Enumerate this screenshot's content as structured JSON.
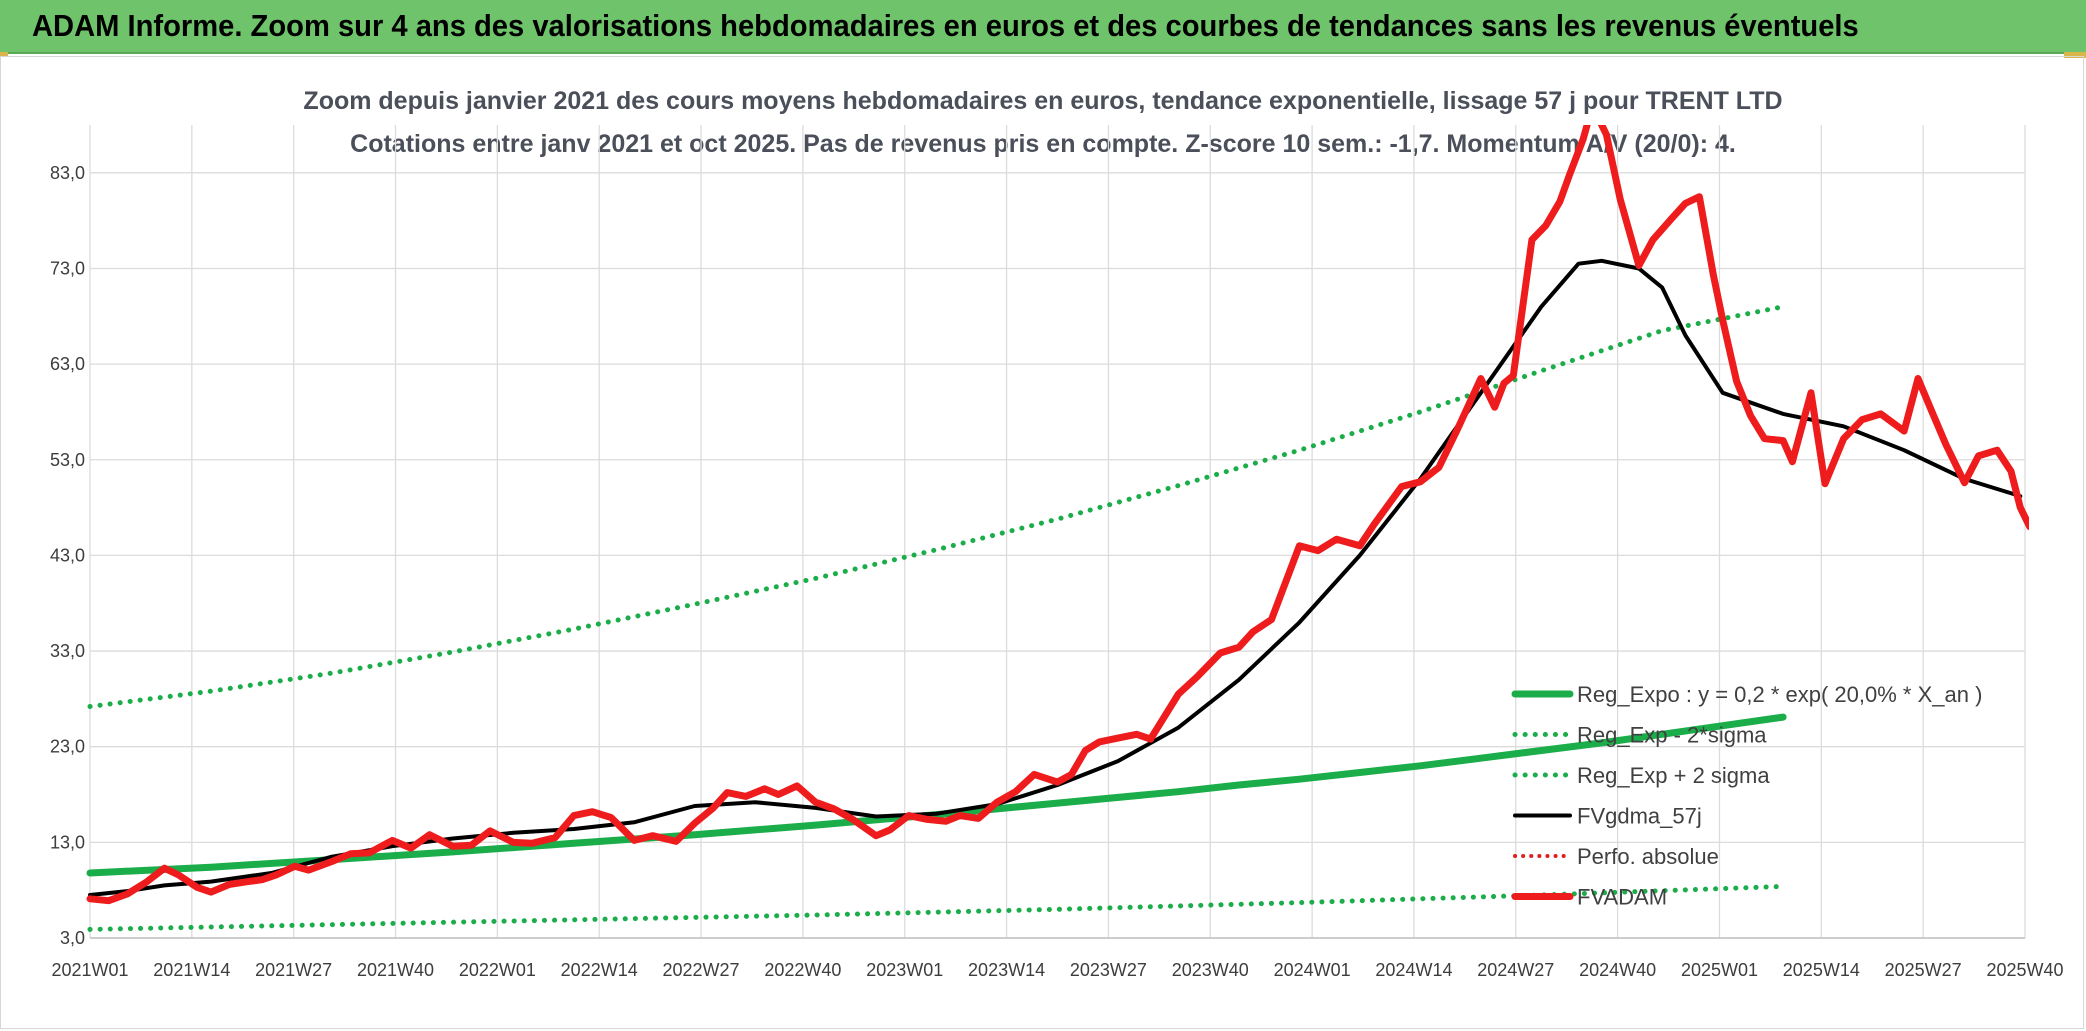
{
  "banner": {
    "title": "ADAM Informe. Zoom sur 4 ans des valorisations hebdomadaires en euros et des courbes de tendances sans les revenus éventuels"
  },
  "chart_data": {
    "type": "line",
    "title_line1": "Zoom depuis janvier 2021 des cours moyens hebdomadaires en euros, tendance exponentielle, lissage 57 j pour TRENT LTD",
    "title_line2": "Cotations entre janv 2021 et oct 2025. Pas de revenus pris en compte. Z-score 10 sem.: -1,7. Momentum A/V (20/0): 4.",
    "ylim": [
      3,
      88
    ],
    "y_ticks": [
      "3,0",
      "13,0",
      "23,0",
      "33,0",
      "43,0",
      "53,0",
      "63,0",
      "73,0",
      "83,0"
    ],
    "y_tick_values": [
      3,
      13,
      23,
      33,
      43,
      53,
      63,
      73,
      83
    ],
    "x_ticks": [
      "2021W01",
      "2021W14",
      "2021W27",
      "2021W40",
      "2022W01",
      "2022W14",
      "2022W27",
      "2022W40",
      "2023W01",
      "2023W14",
      "2023W27",
      "2023W40",
      "2024W01",
      "2024W14",
      "2024W27",
      "2024W40",
      "2025W01",
      "2025W14",
      "2025W27",
      "2025W40"
    ],
    "grid": true,
    "legend_position": "bottom-right",
    "colors": {
      "reg_expo": "#1aad4a",
      "sigma": "#1aad4a",
      "fvgdma": "#000000",
      "perfo": "#e02020",
      "fvadam": "#ee1c1c"
    },
    "series": [
      {
        "name": "Reg_Expo : y = 0,2 * exp( 20,0% *  X_an )",
        "style": "solid-thick-green",
        "points": [
          [
            0,
            9.8
          ],
          [
            26,
            10.4
          ],
          [
            52,
            11.2
          ],
          [
            78,
            12.0
          ],
          [
            104,
            12.9
          ],
          [
            130,
            13.8
          ],
          [
            156,
            14.8
          ],
          [
            182,
            15.9
          ],
          [
            208,
            17.1
          ],
          [
            234,
            18.3
          ],
          [
            247,
            19.0
          ],
          [
            260,
            19.6
          ],
          [
            273,
            20.3
          ],
          [
            286,
            21.0
          ],
          [
            299,
            21.8
          ],
          [
            312,
            22.6
          ],
          [
            325,
            23.4
          ],
          [
            338,
            24.3
          ],
          [
            351,
            25.2
          ],
          [
            364,
            26.1
          ]
        ]
      },
      {
        "name": "Reg_Exp - 2*sigma",
        "style": "dotted-green",
        "points": [
          [
            0,
            3.9
          ],
          [
            52,
            4.4
          ],
          [
            104,
            4.9
          ],
          [
            156,
            5.4
          ],
          [
            208,
            6.0
          ],
          [
            260,
            6.7
          ],
          [
            312,
            7.5
          ],
          [
            364,
            8.4
          ]
        ]
      },
      {
        "name": "Reg_Exp + 2 sigma",
        "style": "dotted-green",
        "points": [
          [
            0,
            27.2
          ],
          [
            26,
            28.8
          ],
          [
            52,
            30.7
          ],
          [
            78,
            32.9
          ],
          [
            104,
            35.3
          ],
          [
            130,
            37.9
          ],
          [
            156,
            40.6
          ],
          [
            182,
            43.6
          ],
          [
            208,
            46.8
          ],
          [
            234,
            50.3
          ],
          [
            260,
            54.0
          ],
          [
            286,
            58.0
          ],
          [
            312,
            62.3
          ],
          [
            338,
            66.5
          ],
          [
            364,
            69.0
          ]
        ]
      },
      {
        "name": "FVgdma_57j",
        "style": "solid-black",
        "points": [
          [
            0,
            7.5
          ],
          [
            8,
            7.9
          ],
          [
            16,
            8.5
          ],
          [
            26,
            8.9
          ],
          [
            39,
            9.8
          ],
          [
            52,
            11.5
          ],
          [
            65,
            12.6
          ],
          [
            78,
            13.4
          ],
          [
            91,
            14.0
          ],
          [
            104,
            14.4
          ],
          [
            117,
            15.1
          ],
          [
            130,
            16.8
          ],
          [
            143,
            17.2
          ],
          [
            156,
            16.6
          ],
          [
            169,
            15.7
          ],
          [
            182,
            16.0
          ],
          [
            195,
            17.0
          ],
          [
            208,
            19.0
          ],
          [
            221,
            21.5
          ],
          [
            234,
            25.0
          ],
          [
            247,
            30.0
          ],
          [
            260,
            36.0
          ],
          [
            273,
            43.0
          ],
          [
            286,
            51.0
          ],
          [
            299,
            60.0
          ],
          [
            312,
            69.0
          ],
          [
            320,
            73.5
          ],
          [
            325,
            73.8
          ],
          [
            333,
            73.0
          ],
          [
            338,
            71.0
          ],
          [
            343,
            66.0
          ],
          [
            351,
            60.0
          ],
          [
            364,
            57.8
          ],
          [
            377,
            56.5
          ],
          [
            390,
            54.0
          ],
          [
            403,
            51.0
          ],
          [
            415,
            49.2
          ]
        ]
      },
      {
        "name": "Perfo. absolue",
        "style": "dotted-red",
        "points": []
      },
      {
        "name": "FVADAM",
        "style": "solid-thick-red",
        "points": [
          [
            0,
            7.1
          ],
          [
            4,
            6.9
          ],
          [
            8,
            7.6
          ],
          [
            12,
            8.8
          ],
          [
            16,
            10.3
          ],
          [
            19,
            9.6
          ],
          [
            23,
            8.3
          ],
          [
            26,
            7.8
          ],
          [
            30,
            8.6
          ],
          [
            34,
            8.9
          ],
          [
            37,
            9.1
          ],
          [
            40,
            9.6
          ],
          [
            44,
            10.5
          ],
          [
            47,
            10.1
          ],
          [
            52,
            11.0
          ],
          [
            56,
            11.8
          ],
          [
            60,
            11.9
          ],
          [
            65,
            13.2
          ],
          [
            69,
            12.4
          ],
          [
            73,
            13.8
          ],
          [
            78,
            12.6
          ],
          [
            82,
            12.7
          ],
          [
            86,
            14.2
          ],
          [
            91,
            13.0
          ],
          [
            95,
            12.9
          ],
          [
            100,
            13.5
          ],
          [
            104,
            15.8
          ],
          [
            108,
            16.2
          ],
          [
            112,
            15.6
          ],
          [
            117,
            13.2
          ],
          [
            121,
            13.7
          ],
          [
            126,
            13.1
          ],
          [
            130,
            15.0
          ],
          [
            134,
            16.6
          ],
          [
            137,
            18.2
          ],
          [
            141,
            17.8
          ],
          [
            145,
            18.6
          ],
          [
            148,
            18.0
          ],
          [
            152,
            18.9
          ],
          [
            156,
            17.2
          ],
          [
            160,
            16.5
          ],
          [
            164,
            15.4
          ],
          [
            169,
            13.7
          ],
          [
            172,
            14.3
          ],
          [
            176,
            15.8
          ],
          [
            180,
            15.4
          ],
          [
            184,
            15.2
          ],
          [
            187,
            15.8
          ],
          [
            191,
            15.5
          ],
          [
            195,
            17.2
          ],
          [
            199,
            18.3
          ],
          [
            203,
            20.1
          ],
          [
            208,
            19.3
          ],
          [
            211,
            20.1
          ],
          [
            214,
            22.6
          ],
          [
            217,
            23.5
          ],
          [
            221,
            23.9
          ],
          [
            225,
            24.3
          ],
          [
            228,
            23.8
          ],
          [
            234,
            28.5
          ],
          [
            238,
            30.3
          ],
          [
            243,
            32.8
          ],
          [
            247,
            33.4
          ],
          [
            250,
            35.0
          ],
          [
            254,
            36.3
          ],
          [
            260,
            44.0
          ],
          [
            264,
            43.5
          ],
          [
            268,
            44.7
          ],
          [
            273,
            44.0
          ],
          [
            276,
            46.2
          ],
          [
            282,
            50.2
          ],
          [
            286,
            50.7
          ],
          [
            290,
            52.2
          ],
          [
            294,
            56.2
          ],
          [
            299,
            61.5
          ],
          [
            302,
            58.5
          ],
          [
            304,
            61.0
          ],
          [
            306,
            61.8
          ],
          [
            310,
            76.0
          ],
          [
            313,
            77.5
          ],
          [
            316,
            80.0
          ],
          [
            318,
            82.7
          ],
          [
            321,
            86.5
          ],
          [
            323,
            90.0
          ],
          [
            326,
            87.0
          ],
          [
            329,
            80.2
          ],
          [
            333,
            73.3
          ],
          [
            336,
            76.0
          ],
          [
            340,
            78.2
          ],
          [
            343,
            79.8
          ],
          [
            346,
            80.5
          ],
          [
            349,
            72.3
          ],
          [
            351,
            67.6
          ],
          [
            354,
            61.2
          ],
          [
            357,
            57.6
          ],
          [
            360,
            55.2
          ],
          [
            364,
            55.0
          ],
          [
            366,
            52.8
          ],
          [
            370,
            60.0
          ],
          [
            373,
            50.5
          ],
          [
            377,
            55.2
          ],
          [
            381,
            57.2
          ],
          [
            385,
            57.8
          ],
          [
            390,
            56.0
          ],
          [
            393,
            61.5
          ],
          [
            396,
            58.0
          ],
          [
            399,
            54.6
          ],
          [
            403,
            50.6
          ],
          [
            406,
            53.4
          ],
          [
            410,
            54.0
          ],
          [
            413,
            51.8
          ],
          [
            415,
            48.0
          ],
          [
            417,
            46.0
          ]
        ]
      }
    ]
  }
}
